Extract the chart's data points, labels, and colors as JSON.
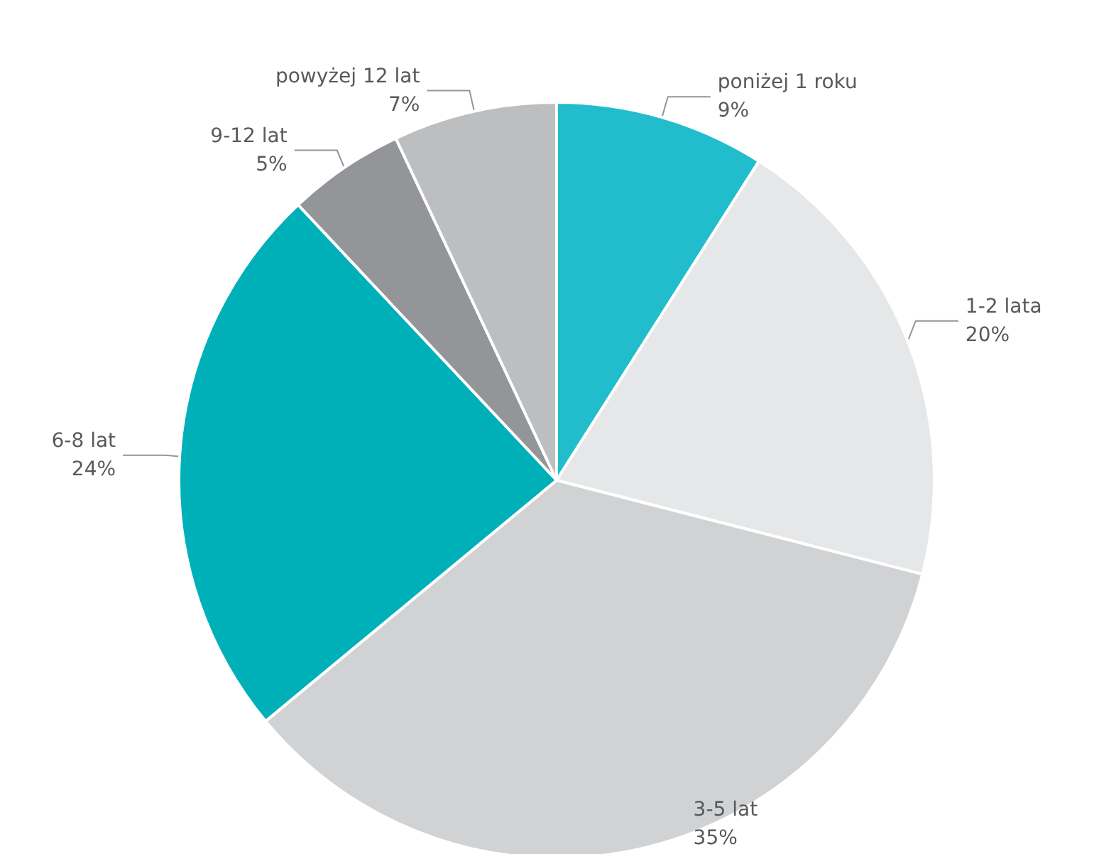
{
  "chart_data": {
    "type": "pie",
    "categories": [
      "poniżej 1 roku",
      "1-2 lata",
      "3-5 lat",
      "6-8 lat",
      "9-12 lat",
      "powyżej 12 lat"
    ],
    "values": [
      9,
      20,
      35,
      24,
      5,
      7
    ],
    "value_labels": [
      "9%",
      "20%",
      "35%",
      "24%",
      "5%",
      "7%"
    ],
    "colors": [
      "#22bdcc",
      "#e6e7e8",
      "#d1d2d4",
      "#00b0b9",
      "#939598",
      "#bcbec0"
    ],
    "legend": false
  }
}
